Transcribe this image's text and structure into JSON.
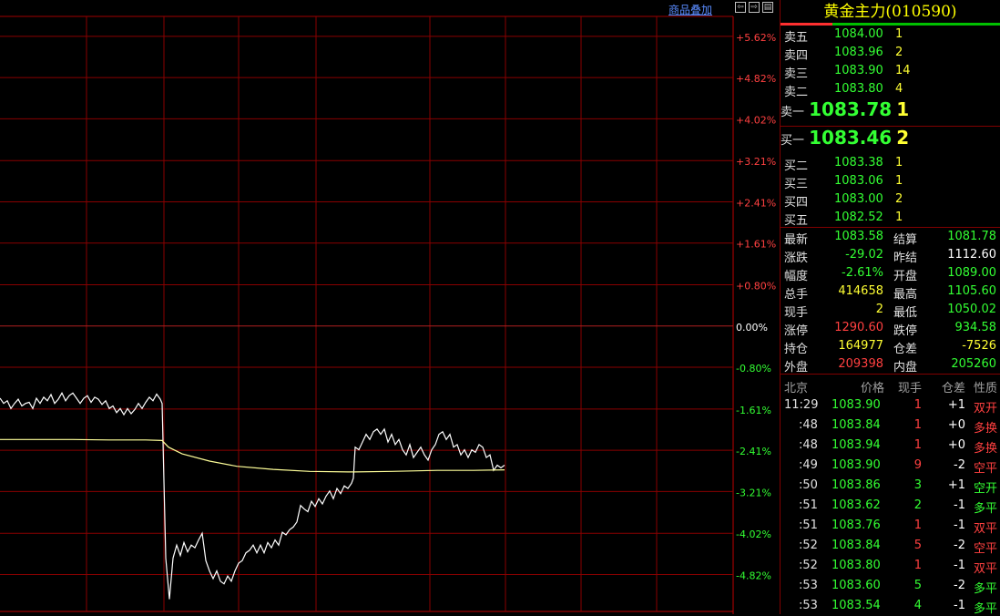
{
  "overlay_label": "商品叠加",
  "window_buttons": [
    "⇦",
    "⇨",
    "▤"
  ],
  "title": "黄金主力(010590)",
  "asks": [
    {
      "label": "卖五",
      "price": "1084.00",
      "vol": "1"
    },
    {
      "label": "卖四",
      "price": "1083.96",
      "vol": "2"
    },
    {
      "label": "卖三",
      "price": "1083.90",
      "vol": "14"
    },
    {
      "label": "卖二",
      "price": "1083.80",
      "vol": "4"
    }
  ],
  "ask1": {
    "label": "卖一",
    "price": "1083.78",
    "vol": "1"
  },
  "bid1": {
    "label": "买一",
    "price": "1083.46",
    "vol": "2"
  },
  "bids": [
    {
      "label": "买二",
      "price": "1083.38",
      "vol": "1"
    },
    {
      "label": "买三",
      "price": "1083.06",
      "vol": "1"
    },
    {
      "label": "买四",
      "price": "1083.00",
      "vol": "2"
    },
    {
      "label": "买五",
      "price": "1082.52",
      "vol": "1"
    }
  ],
  "stats": [
    {
      "l1": "最新",
      "v1": "1083.58",
      "c1": "green",
      "l2": "结算",
      "v2": "1081.78",
      "c2": "green"
    },
    {
      "l1": "涨跌",
      "v1": "-29.02",
      "c1": "green",
      "l2": "昨结",
      "v2": "1112.60",
      "c2": "white"
    },
    {
      "l1": "幅度",
      "v1": "-2.61%",
      "c1": "green",
      "l2": "开盘",
      "v2": "1089.00",
      "c2": "green"
    },
    {
      "l1": "总手",
      "v1": "414658",
      "c1": "yellow",
      "l2": "最高",
      "v2": "1105.60",
      "c2": "green"
    },
    {
      "l1": "现手",
      "v1": "2",
      "c1": "yellow",
      "l2": "最低",
      "v2": "1050.02",
      "c2": "green"
    },
    {
      "l1": "涨停",
      "v1": "1290.60",
      "c1": "red",
      "l2": "跌停",
      "v2": "934.58",
      "c2": "green"
    },
    {
      "l1": "持仓",
      "v1": "164977",
      "c1": "yellow",
      "l2": "仓差",
      "v2": "-7526",
      "c2": "yellow"
    },
    {
      "l1": "外盘",
      "v1": "209398",
      "c1": "red",
      "l2": "内盘",
      "v2": "205260",
      "c2": "green"
    }
  ],
  "ticks_header": {
    "time": "北京",
    "price": "价格",
    "vol": "现手",
    "oi": "仓差",
    "nature": "性质"
  },
  "ticks": [
    {
      "time": "11:29",
      "price": "1083.90",
      "vol": "1",
      "vc": "red",
      "oi": "+1",
      "nature": "双开",
      "nc": "red"
    },
    {
      "time": ":48",
      "price": "1083.84",
      "vol": "1",
      "vc": "red",
      "oi": "+0",
      "nature": "多换",
      "nc": "red"
    },
    {
      "time": ":48",
      "price": "1083.94",
      "vol": "1",
      "vc": "red",
      "oi": "+0",
      "nature": "多换",
      "nc": "red"
    },
    {
      "time": ":49",
      "price": "1083.90",
      "vol": "9",
      "vc": "red",
      "oi": "-2",
      "nature": "空平",
      "nc": "red"
    },
    {
      "time": ":50",
      "price": "1083.86",
      "vol": "3",
      "vc": "green",
      "oi": "+1",
      "nature": "空开",
      "nc": "green"
    },
    {
      "time": ":51",
      "price": "1083.62",
      "vol": "2",
      "vc": "green",
      "oi": "-1",
      "nature": "多平",
      "nc": "green"
    },
    {
      "time": ":51",
      "price": "1083.76",
      "vol": "1",
      "vc": "red",
      "oi": "-1",
      "nature": "双平",
      "nc": "red"
    },
    {
      "time": ":52",
      "price": "1083.84",
      "vol": "5",
      "vc": "red",
      "oi": "-2",
      "nature": "空平",
      "nc": "red"
    },
    {
      "time": ":52",
      "price": "1083.80",
      "vol": "1",
      "vc": "red",
      "oi": "-1",
      "nature": "双平",
      "nc": "red"
    },
    {
      "time": ":53",
      "price": "1083.60",
      "vol": "5",
      "vc": "green",
      "oi": "-2",
      "nature": "多平",
      "nc": "green"
    },
    {
      "time": ":53",
      "price": "1083.54",
      "vol": "4",
      "vc": "green",
      "oi": "-1",
      "nature": "多平",
      "nc": "green"
    }
  ],
  "chart_data": {
    "type": "line",
    "ylim": [
      -5.62,
      5.62
    ],
    "y_tick_labels": [
      "+5.62%",
      "+4.82%",
      "+4.02%",
      "+3.21%",
      "+2.41%",
      "+1.61%",
      "+0.80%",
      "0.00%",
      "-0.80%",
      "-1.61%",
      "-2.41%",
      "-3.21%",
      "-4.02%",
      "-4.82%"
    ],
    "y_tick_values": [
      5.62,
      4.82,
      4.02,
      3.21,
      2.41,
      1.61,
      0.8,
      0.0,
      -0.8,
      -1.61,
      -2.41,
      -3.21,
      -4.02,
      -4.82
    ],
    "series": [
      {
        "color": "#ffffff",
        "points": [
          [
            0,
            -1.4
          ],
          [
            4,
            -1.5
          ],
          [
            8,
            -1.45
          ],
          [
            12,
            -1.6
          ],
          [
            16,
            -1.5
          ],
          [
            20,
            -1.42
          ],
          [
            24,
            -1.55
          ],
          [
            28,
            -1.5
          ],
          [
            32,
            -1.48
          ],
          [
            36,
            -1.6
          ],
          [
            40,
            -1.4
          ],
          [
            44,
            -1.5
          ],
          [
            48,
            -1.38
          ],
          [
            52,
            -1.45
          ],
          [
            56,
            -1.33
          ],
          [
            60,
            -1.5
          ],
          [
            64,
            -1.42
          ],
          [
            68,
            -1.3
          ],
          [
            72,
            -1.45
          ],
          [
            76,
            -1.35
          ],
          [
            80,
            -1.3
          ],
          [
            84,
            -1.4
          ],
          [
            88,
            -1.5
          ],
          [
            92,
            -1.4
          ],
          [
            96,
            -1.35
          ],
          [
            100,
            -1.48
          ],
          [
            104,
            -1.38
          ],
          [
            108,
            -1.42
          ],
          [
            112,
            -1.52
          ],
          [
            116,
            -1.45
          ],
          [
            120,
            -1.6
          ],
          [
            124,
            -1.55
          ],
          [
            128,
            -1.68
          ],
          [
            132,
            -1.6
          ],
          [
            136,
            -1.72
          ],
          [
            140,
            -1.6
          ],
          [
            144,
            -1.7
          ],
          [
            148,
            -1.62
          ],
          [
            152,
            -1.5
          ],
          [
            156,
            -1.6
          ],
          [
            160,
            -1.48
          ],
          [
            164,
            -1.38
          ],
          [
            168,
            -1.45
          ],
          [
            172,
            -1.32
          ],
          [
            176,
            -1.42
          ],
          [
            178,
            -1.5
          ],
          [
            182,
            -4.5
          ],
          [
            186,
            -5.3
          ],
          [
            190,
            -4.5
          ],
          [
            194,
            -4.25
          ],
          [
            198,
            -4.45
          ],
          [
            202,
            -4.2
          ],
          [
            206,
            -4.38
          ],
          [
            210,
            -4.25
          ],
          [
            214,
            -4.3
          ],
          [
            218,
            -4.15
          ],
          [
            222,
            -4.02
          ],
          [
            226,
            -4.55
          ],
          [
            230,
            -4.75
          ],
          [
            234,
            -4.9
          ],
          [
            238,
            -4.75
          ],
          [
            242,
            -4.95
          ],
          [
            246,
            -5.0
          ],
          [
            250,
            -4.85
          ],
          [
            254,
            -4.95
          ],
          [
            258,
            -4.75
          ],
          [
            262,
            -4.6
          ],
          [
            266,
            -4.55
          ],
          [
            270,
            -4.4
          ],
          [
            274,
            -4.35
          ],
          [
            278,
            -4.25
          ],
          [
            282,
            -4.4
          ],
          [
            286,
            -4.25
          ],
          [
            290,
            -4.4
          ],
          [
            294,
            -4.2
          ],
          [
            298,
            -4.3
          ],
          [
            302,
            -4.15
          ],
          [
            306,
            -4.25
          ],
          [
            310,
            -4.0
          ],
          [
            314,
            -4.05
          ],
          [
            318,
            -3.95
          ],
          [
            322,
            -3.9
          ],
          [
            326,
            -3.8
          ],
          [
            330,
            -3.48
          ],
          [
            334,
            -3.55
          ],
          [
            338,
            -3.6
          ],
          [
            342,
            -3.4
          ],
          [
            346,
            -3.5
          ],
          [
            350,
            -3.35
          ],
          [
            354,
            -3.45
          ],
          [
            358,
            -3.3
          ],
          [
            362,
            -3.2
          ],
          [
            366,
            -3.35
          ],
          [
            370,
            -3.15
          ],
          [
            374,
            -3.25
          ],
          [
            378,
            -3.1
          ],
          [
            382,
            -3.15
          ],
          [
            386,
            -3.05
          ],
          [
            388,
            -2.95
          ],
          [
            390,
            -2.35
          ],
          [
            394,
            -2.4
          ],
          [
            398,
            -2.25
          ],
          [
            402,
            -2.1
          ],
          [
            406,
            -2.2
          ],
          [
            410,
            -2.05
          ],
          [
            414,
            -2.0
          ],
          [
            418,
            -2.1
          ],
          [
            422,
            -2.0
          ],
          [
            426,
            -2.25
          ],
          [
            430,
            -2.1
          ],
          [
            434,
            -2.3
          ],
          [
            438,
            -2.2
          ],
          [
            442,
            -2.4
          ],
          [
            446,
            -2.5
          ],
          [
            450,
            -2.3
          ],
          [
            454,
            -2.55
          ],
          [
            458,
            -2.45
          ],
          [
            462,
            -2.35
          ],
          [
            466,
            -2.5
          ],
          [
            470,
            -2.6
          ],
          [
            474,
            -2.4
          ],
          [
            478,
            -2.3
          ],
          [
            482,
            -2.1
          ],
          [
            486,
            -2.05
          ],
          [
            490,
            -2.2
          ],
          [
            494,
            -2.1
          ],
          [
            498,
            -2.35
          ],
          [
            502,
            -2.3
          ],
          [
            506,
            -2.5
          ],
          [
            510,
            -2.4
          ],
          [
            514,
            -2.55
          ],
          [
            518,
            -2.4
          ],
          [
            522,
            -2.45
          ],
          [
            526,
            -2.3
          ],
          [
            530,
            -2.35
          ],
          [
            534,
            -2.55
          ],
          [
            538,
            -2.5
          ],
          [
            542,
            -2.8
          ],
          [
            546,
            -2.7
          ],
          [
            550,
            -2.75
          ],
          [
            554,
            -2.7
          ]
        ]
      },
      {
        "color": "#ffff99",
        "points": [
          [
            0,
            -2.2
          ],
          [
            40,
            -2.2
          ],
          [
            80,
            -2.2
          ],
          [
            120,
            -2.21
          ],
          [
            160,
            -2.21
          ],
          [
            178,
            -2.22
          ],
          [
            185,
            -2.35
          ],
          [
            200,
            -2.48
          ],
          [
            230,
            -2.62
          ],
          [
            260,
            -2.72
          ],
          [
            300,
            -2.78
          ],
          [
            340,
            -2.82
          ],
          [
            385,
            -2.83
          ],
          [
            390,
            -2.83
          ],
          [
            430,
            -2.82
          ],
          [
            480,
            -2.8
          ],
          [
            520,
            -2.8
          ],
          [
            554,
            -2.79
          ]
        ]
      }
    ]
  }
}
